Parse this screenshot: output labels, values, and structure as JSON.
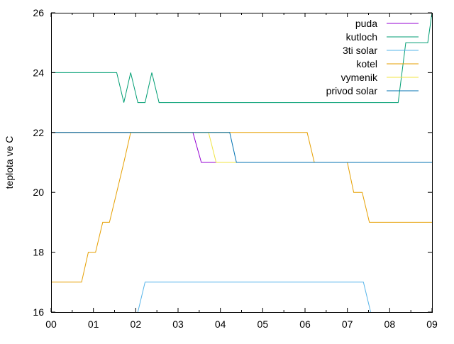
{
  "chart_data": {
    "type": "line",
    "title": "",
    "xlabel": "",
    "ylabel": "teplota ve C",
    "xlim": [
      0,
      9
    ],
    "ylim": [
      16,
      26
    ],
    "x_ticks": [
      "00",
      "01",
      "02",
      "03",
      "04",
      "05",
      "06",
      "07",
      "08",
      "09"
    ],
    "y_ticks": [
      "16",
      "18",
      "20",
      "22",
      "24",
      "26"
    ],
    "grid": false,
    "legend_position": "top-right",
    "series": [
      {
        "name": "puda",
        "color": "#9400d3",
        "points": [
          [
            0,
            22
          ],
          [
            3.35,
            22
          ],
          [
            3.55,
            21
          ],
          [
            3.85,
            21
          ],
          [
            3.95,
            21
          ],
          [
            9,
            21
          ]
        ]
      },
      {
        "name": "kutloch",
        "color": "#009e73",
        "points": [
          [
            0,
            24
          ],
          [
            1.55,
            24
          ],
          [
            1.72,
            23
          ],
          [
            1.88,
            24
          ],
          [
            2.05,
            23
          ],
          [
            2.22,
            23
          ],
          [
            2.38,
            24
          ],
          [
            2.55,
            23
          ],
          [
            8.2,
            23
          ],
          [
            8.38,
            25
          ],
          [
            8.9,
            25
          ],
          [
            9,
            26
          ]
        ]
      },
      {
        "name": "3ti solar",
        "color": "#56b4e9",
        "points": [
          [
            2.05,
            16
          ],
          [
            2.22,
            17
          ],
          [
            7.38,
            17
          ],
          [
            7.55,
            16
          ]
        ]
      },
      {
        "name": "kotel",
        "color": "#e69f00",
        "points": [
          [
            0,
            17
          ],
          [
            0.72,
            17
          ],
          [
            0.88,
            18
          ],
          [
            1.05,
            18
          ],
          [
            1.22,
            19
          ],
          [
            1.38,
            19
          ],
          [
            1.55,
            20
          ],
          [
            1.72,
            21
          ],
          [
            1.88,
            22
          ],
          [
            4.05,
            22
          ],
          [
            6.05,
            22
          ],
          [
            6.22,
            21
          ],
          [
            7.0,
            21
          ],
          [
            7.15,
            20
          ],
          [
            7.35,
            20
          ],
          [
            7.52,
            19
          ],
          [
            9,
            19
          ]
        ]
      },
      {
        "name": "vymenik",
        "color": "#f0e442",
        "points": [
          [
            0,
            22
          ],
          [
            3.72,
            22
          ],
          [
            3.9,
            21
          ],
          [
            4.35,
            21
          ],
          [
            9,
            21
          ]
        ]
      },
      {
        "name": "privod solar",
        "color": "#0072b2",
        "points": [
          [
            0,
            22
          ],
          [
            4.22,
            22
          ],
          [
            4.38,
            21
          ],
          [
            9,
            21
          ]
        ]
      }
    ]
  }
}
